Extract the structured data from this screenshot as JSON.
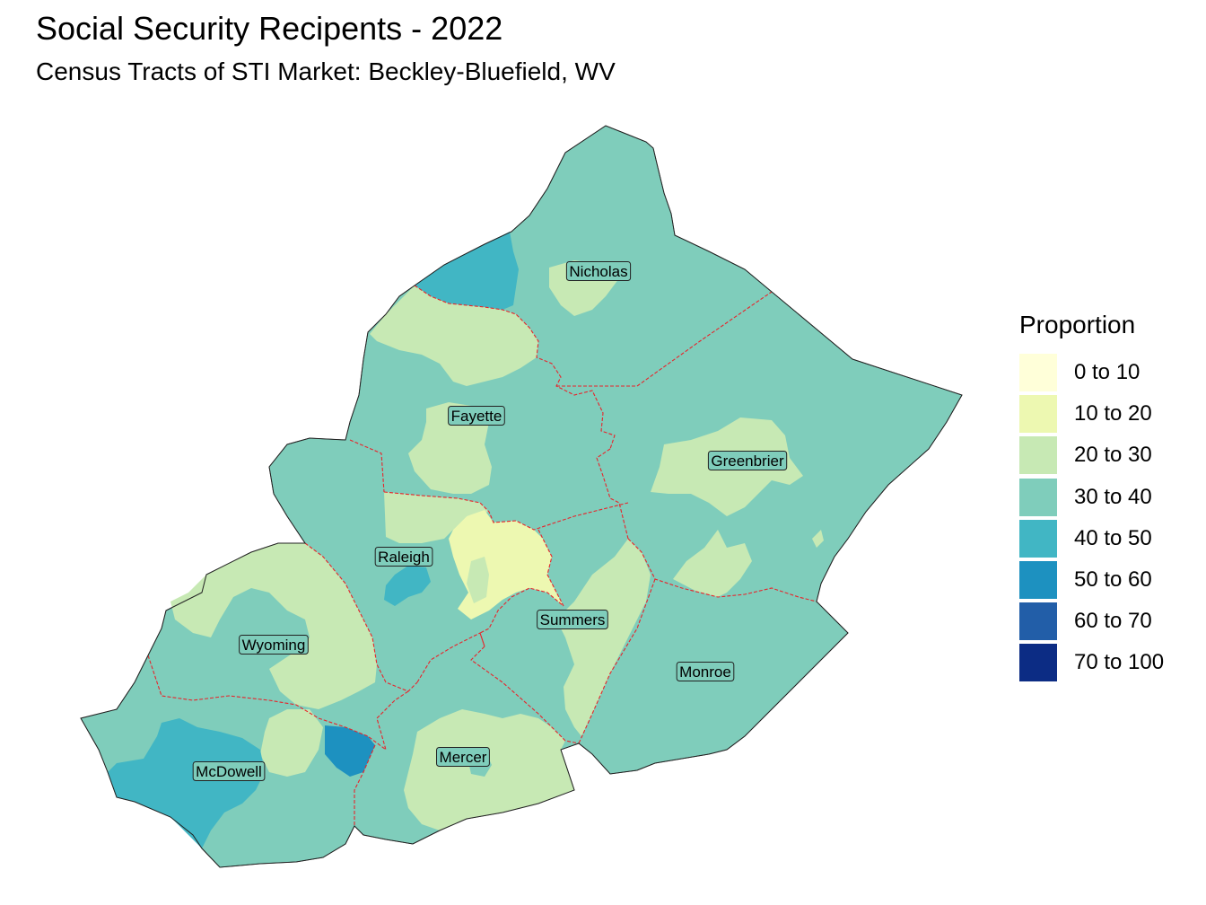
{
  "title": "Social Security Recipents - 2022",
  "subtitle": "Census Tracts of STI Market: Beckley-Bluefield, WV",
  "legend": {
    "title": "Proportion",
    "items": [
      {
        "label": "0 to 10",
        "color": "#FFFFD9"
      },
      {
        "label": "10 to 20",
        "color": "#EDF8B1"
      },
      {
        "label": "20 to 30",
        "color": "#C7E9B4"
      },
      {
        "label": "30 to 40",
        "color": "#7FCDBB"
      },
      {
        "label": "40 to 50",
        "color": "#41B6C4"
      },
      {
        "label": "50 to 60",
        "color": "#1D91C0"
      },
      {
        "label": "60 to 70",
        "color": "#225EA8"
      },
      {
        "label": "70 to 100",
        "color": "#0C2C84"
      }
    ]
  },
  "border_color": "#E8242B",
  "counties": [
    {
      "name": "Nicholas"
    },
    {
      "name": "Fayette"
    },
    {
      "name": "Greenbrier"
    },
    {
      "name": "Raleigh"
    },
    {
      "name": "Summers"
    },
    {
      "name": "Wyoming"
    },
    {
      "name": "Monroe"
    },
    {
      "name": "Mercer"
    },
    {
      "name": "McDowell"
    }
  ]
}
